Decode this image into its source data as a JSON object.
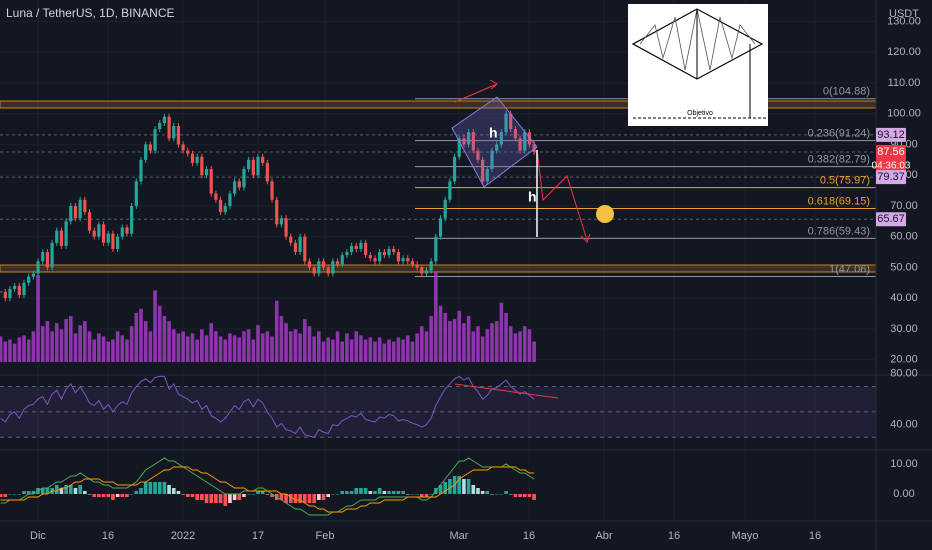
{
  "header": {
    "title": "Luna / TetherUS, 1D, BINANCE",
    "currency": "USDT",
    "countdown": "04:36:03"
  },
  "chart_data": [
    {
      "type": "candlestick",
      "ylim": [
        15,
        137
      ],
      "yticks": [
        {
          "value": 20,
          "label": "20.00"
        },
        {
          "value": 30,
          "label": "30.00"
        },
        {
          "value": 40,
          "label": "40.00"
        },
        {
          "value": 50,
          "label": "50.00"
        },
        {
          "value": 60,
          "label": "60.00"
        },
        {
          "value": 70,
          "label": "70.00"
        },
        {
          "value": 80,
          "label": "80.00"
        },
        {
          "value": 90,
          "label": "90.00"
        },
        {
          "value": 100,
          "label": "100.00"
        },
        {
          "value": 110,
          "label": "110.00"
        },
        {
          "value": 120,
          "label": "120.00"
        },
        {
          "value": 130,
          "label": "130.00"
        }
      ],
      "up_color": "#26a69a",
      "down_color": "#ef5350",
      "values": [
        42,
        40,
        43,
        44,
        41,
        45,
        47,
        48,
        52,
        55,
        50,
        58,
        62,
        57,
        65,
        70,
        66,
        72,
        68,
        62,
        60,
        64,
        58,
        61,
        56,
        60,
        63,
        61,
        70,
        78,
        85,
        90,
        88,
        95,
        97,
        99,
        92,
        96,
        90,
        88,
        87,
        84,
        86,
        80,
        82,
        74,
        72,
        68,
        70,
        74,
        78,
        76,
        82,
        85,
        80,
        86,
        84,
        78,
        72,
        64,
        66,
        60,
        58,
        55,
        60,
        52,
        50,
        48,
        52,
        50,
        48,
        52,
        51,
        54,
        55,
        57,
        56,
        58,
        54,
        53,
        52,
        55,
        54,
        56,
        55,
        52,
        53,
        52,
        51,
        50,
        48,
        49,
        52,
        60,
        66,
        72,
        78,
        86,
        92,
        90,
        94,
        88,
        85,
        78,
        82,
        88,
        90,
        94,
        100,
        95,
        92,
        88,
        94,
        90,
        87.56
      ],
      "fib_levels": [
        {
          "label": "0(104.88)",
          "value": 104.88,
          "color": "#9598a1"
        },
        {
          "label": "0.236(91.24)",
          "value": 91.24,
          "color": "#9598a1"
        },
        {
          "label": "0.382(82.79)",
          "value": 82.79,
          "color": "#9598a1"
        },
        {
          "label": "0.5(75.97)",
          "value": 75.97,
          "color": "#f0a030"
        },
        {
          "label": "0.618(69.15)",
          "value": 69.15,
          "color": "#f0a030"
        },
        {
          "label": "0.786(59.43)",
          "value": 59.43,
          "color": "#9598a1"
        },
        {
          "label": "1(47.06)",
          "value": 47.06,
          "color": "#9598a1"
        }
      ],
      "price_lines": [
        {
          "value": 93.12,
          "color": "#d7a8e8",
          "text_color": "#131722"
        },
        {
          "value": 87.56,
          "color": "#f23645",
          "text_color": "#ffffff"
        },
        {
          "value": 79.37,
          "color": "#d7a8e8",
          "text_color": "#131722"
        },
        {
          "value": 65.67,
          "color": "#d7a8e8",
          "text_color": "#131722"
        }
      ]
    },
    {
      "type": "bar",
      "color": "#a33cc4",
      "values": [
        25,
        20,
        22,
        18,
        24,
        26,
        22,
        30,
        85,
        35,
        40,
        30,
        38,
        32,
        42,
        45,
        28,
        36,
        40,
        30,
        22,
        28,
        25,
        20,
        22,
        30,
        26,
        22,
        35,
        48,
        52,
        40,
        30,
        70,
        55,
        45,
        40,
        32,
        28,
        30,
        25,
        28,
        22,
        32,
        26,
        38,
        30,
        25,
        22,
        28,
        26,
        24,
        30,
        32,
        22,
        36,
        28,
        30,
        25,
        60,
        45,
        38,
        30,
        32,
        28,
        42,
        35,
        25,
        30,
        20,
        24,
        22,
        30,
        20,
        28,
        22,
        30,
        26,
        22,
        24,
        20,
        24,
        18,
        22,
        20,
        24,
        22,
        26,
        20,
        28,
        35,
        30,
        45,
        88,
        55,
        48,
        40,
        42,
        50,
        38,
        45,
        30,
        35,
        25,
        32,
        38,
        40,
        58,
        48,
        35,
        28,
        30,
        35,
        32,
        20
      ]
    },
    {
      "type": "line",
      "ylim": [
        20,
        83
      ],
      "yticks": [
        {
          "value": 40,
          "label": "40.00"
        },
        {
          "value": 80,
          "label": "80.00"
        }
      ],
      "bands": [
        30,
        50,
        70
      ],
      "color": "#7e57c2",
      "values": [
        45,
        42,
        48,
        50,
        45,
        52,
        55,
        56,
        60,
        62,
        56,
        64,
        67,
        60,
        68,
        72,
        65,
        70,
        64,
        57,
        55,
        59,
        52,
        56,
        50,
        55,
        58,
        56,
        65,
        70,
        74,
        76,
        73,
        77,
        78,
        78,
        68,
        72,
        64,
        62,
        60,
        57,
        59,
        52,
        55,
        47,
        45,
        42,
        45,
        50,
        55,
        52,
        58,
        60,
        54,
        60,
        57,
        50,
        45,
        38,
        41,
        36,
        35,
        33,
        38,
        32,
        31,
        30,
        36,
        34,
        33,
        40,
        39,
        43,
        45,
        47,
        46,
        49,
        44,
        43,
        42,
        46,
        45,
        48,
        47,
        43,
        44,
        43,
        41,
        40,
        38,
        40,
        45,
        55,
        62,
        68,
        72,
        76,
        78,
        75,
        77,
        70,
        66,
        60,
        63,
        68,
        69,
        72,
        75,
        70,
        67,
        64,
        66,
        63,
        60
      ]
    },
    {
      "type": "macd",
      "ylim": [
        -9,
        14
      ],
      "yticks": [
        {
          "value": 0,
          "label": "0.00"
        },
        {
          "value": 10,
          "label": "10.00"
        }
      ],
      "series": [
        {
          "color": "#4caf50",
          "values": [
            -3,
            -3,
            -2,
            -2,
            -2,
            -1,
            0,
            0,
            1,
            2,
            2,
            3,
            4,
            4,
            5,
            6,
            6,
            7,
            6,
            5,
            4,
            4,
            3,
            3,
            2,
            2,
            2,
            2,
            3,
            4,
            6,
            8,
            9,
            10,
            11,
            12,
            11,
            11,
            10,
            9,
            8,
            7,
            6,
            5,
            4,
            3,
            2,
            1,
            0,
            0,
            0,
            0,
            1,
            1,
            1,
            2,
            2,
            1,
            0,
            -1,
            -2,
            -3,
            -4,
            -5,
            -5,
            -6,
            -7,
            -7,
            -7,
            -7,
            -7,
            -6,
            -6,
            -5,
            -4,
            -4,
            -3,
            -2,
            -2,
            -2,
            -2,
            -1,
            -1,
            -1,
            -1,
            -1,
            -1,
            -1,
            -1,
            -1,
            -2,
            -2,
            -1,
            1,
            3,
            5,
            7,
            9,
            11,
            11,
            12,
            11,
            10,
            9,
            9,
            9,
            9,
            9,
            10,
            9,
            8,
            7,
            7,
            6,
            5
          ]
        },
        {
          "color": "#ff9800",
          "values": [
            -2,
            -2,
            -2,
            -2,
            -2,
            -2,
            -1,
            -1,
            -1,
            0,
            0,
            1,
            1,
            2,
            2,
            3,
            4,
            4,
            5,
            5,
            5,
            5,
            4,
            4,
            4,
            3,
            3,
            3,
            3,
            3,
            4,
            4,
            5,
            6,
            7,
            8,
            8,
            9,
            9,
            9,
            9,
            8,
            8,
            7,
            7,
            6,
            5,
            4,
            4,
            3,
            2,
            2,
            2,
            1,
            1,
            1,
            1,
            1,
            1,
            1,
            0,
            0,
            -1,
            -2,
            -2,
            -3,
            -4,
            -4,
            -5,
            -5,
            -6,
            -6,
            -6,
            -6,
            -5,
            -5,
            -5,
            -4,
            -4,
            -3,
            -3,
            -3,
            -2,
            -2,
            -2,
            -2,
            -2,
            -1,
            -1,
            -1,
            -1,
            -1,
            -1,
            -1,
            0,
            1,
            2,
            3,
            5,
            6,
            7,
            8,
            8,
            8,
            8,
            9,
            9,
            9,
            9,
            9,
            9,
            8,
            8,
            7,
            7
          ]
        }
      ],
      "histogram": [
        -1,
        -1,
        0,
        0,
        0,
        1,
        1,
        1,
        2,
        2,
        2,
        2,
        3,
        2,
        3,
        3,
        2,
        3,
        1,
        0,
        -1,
        -1,
        -1,
        -1,
        -2,
        -1,
        -1,
        -1,
        0,
        1,
        2,
        4,
        4,
        4,
        4,
        4,
        3,
        2,
        1,
        0,
        -1,
        -1,
        -2,
        -2,
        -3,
        -3,
        -3,
        -3,
        -4,
        -3,
        -2,
        -2,
        -1,
        0,
        0,
        1,
        1,
        0,
        -1,
        -2,
        -2,
        -3,
        -3,
        -3,
        -3,
        -3,
        -3,
        -3,
        -2,
        -2,
        -1,
        0,
        0,
        1,
        1,
        1,
        2,
        2,
        2,
        1,
        1,
        2,
        1,
        1,
        1,
        1,
        1,
        0,
        0,
        0,
        -1,
        -1,
        0,
        2,
        3,
        4,
        5,
        6,
        6,
        5,
        5,
        3,
        2,
        1,
        1,
        0,
        0,
        0,
        1,
        0,
        -1,
        -1,
        -1,
        -1,
        -2
      ]
    }
  ],
  "x_axis": {
    "labels": [
      "Dic",
      "16",
      "2022",
      "17",
      "Feb",
      "Mar",
      "16",
      "Abr",
      "16",
      "Mayo",
      "16"
    ]
  },
  "annotations": {
    "marks": [
      "h",
      "h"
    ],
    "inset_label": "Objetivo"
  }
}
